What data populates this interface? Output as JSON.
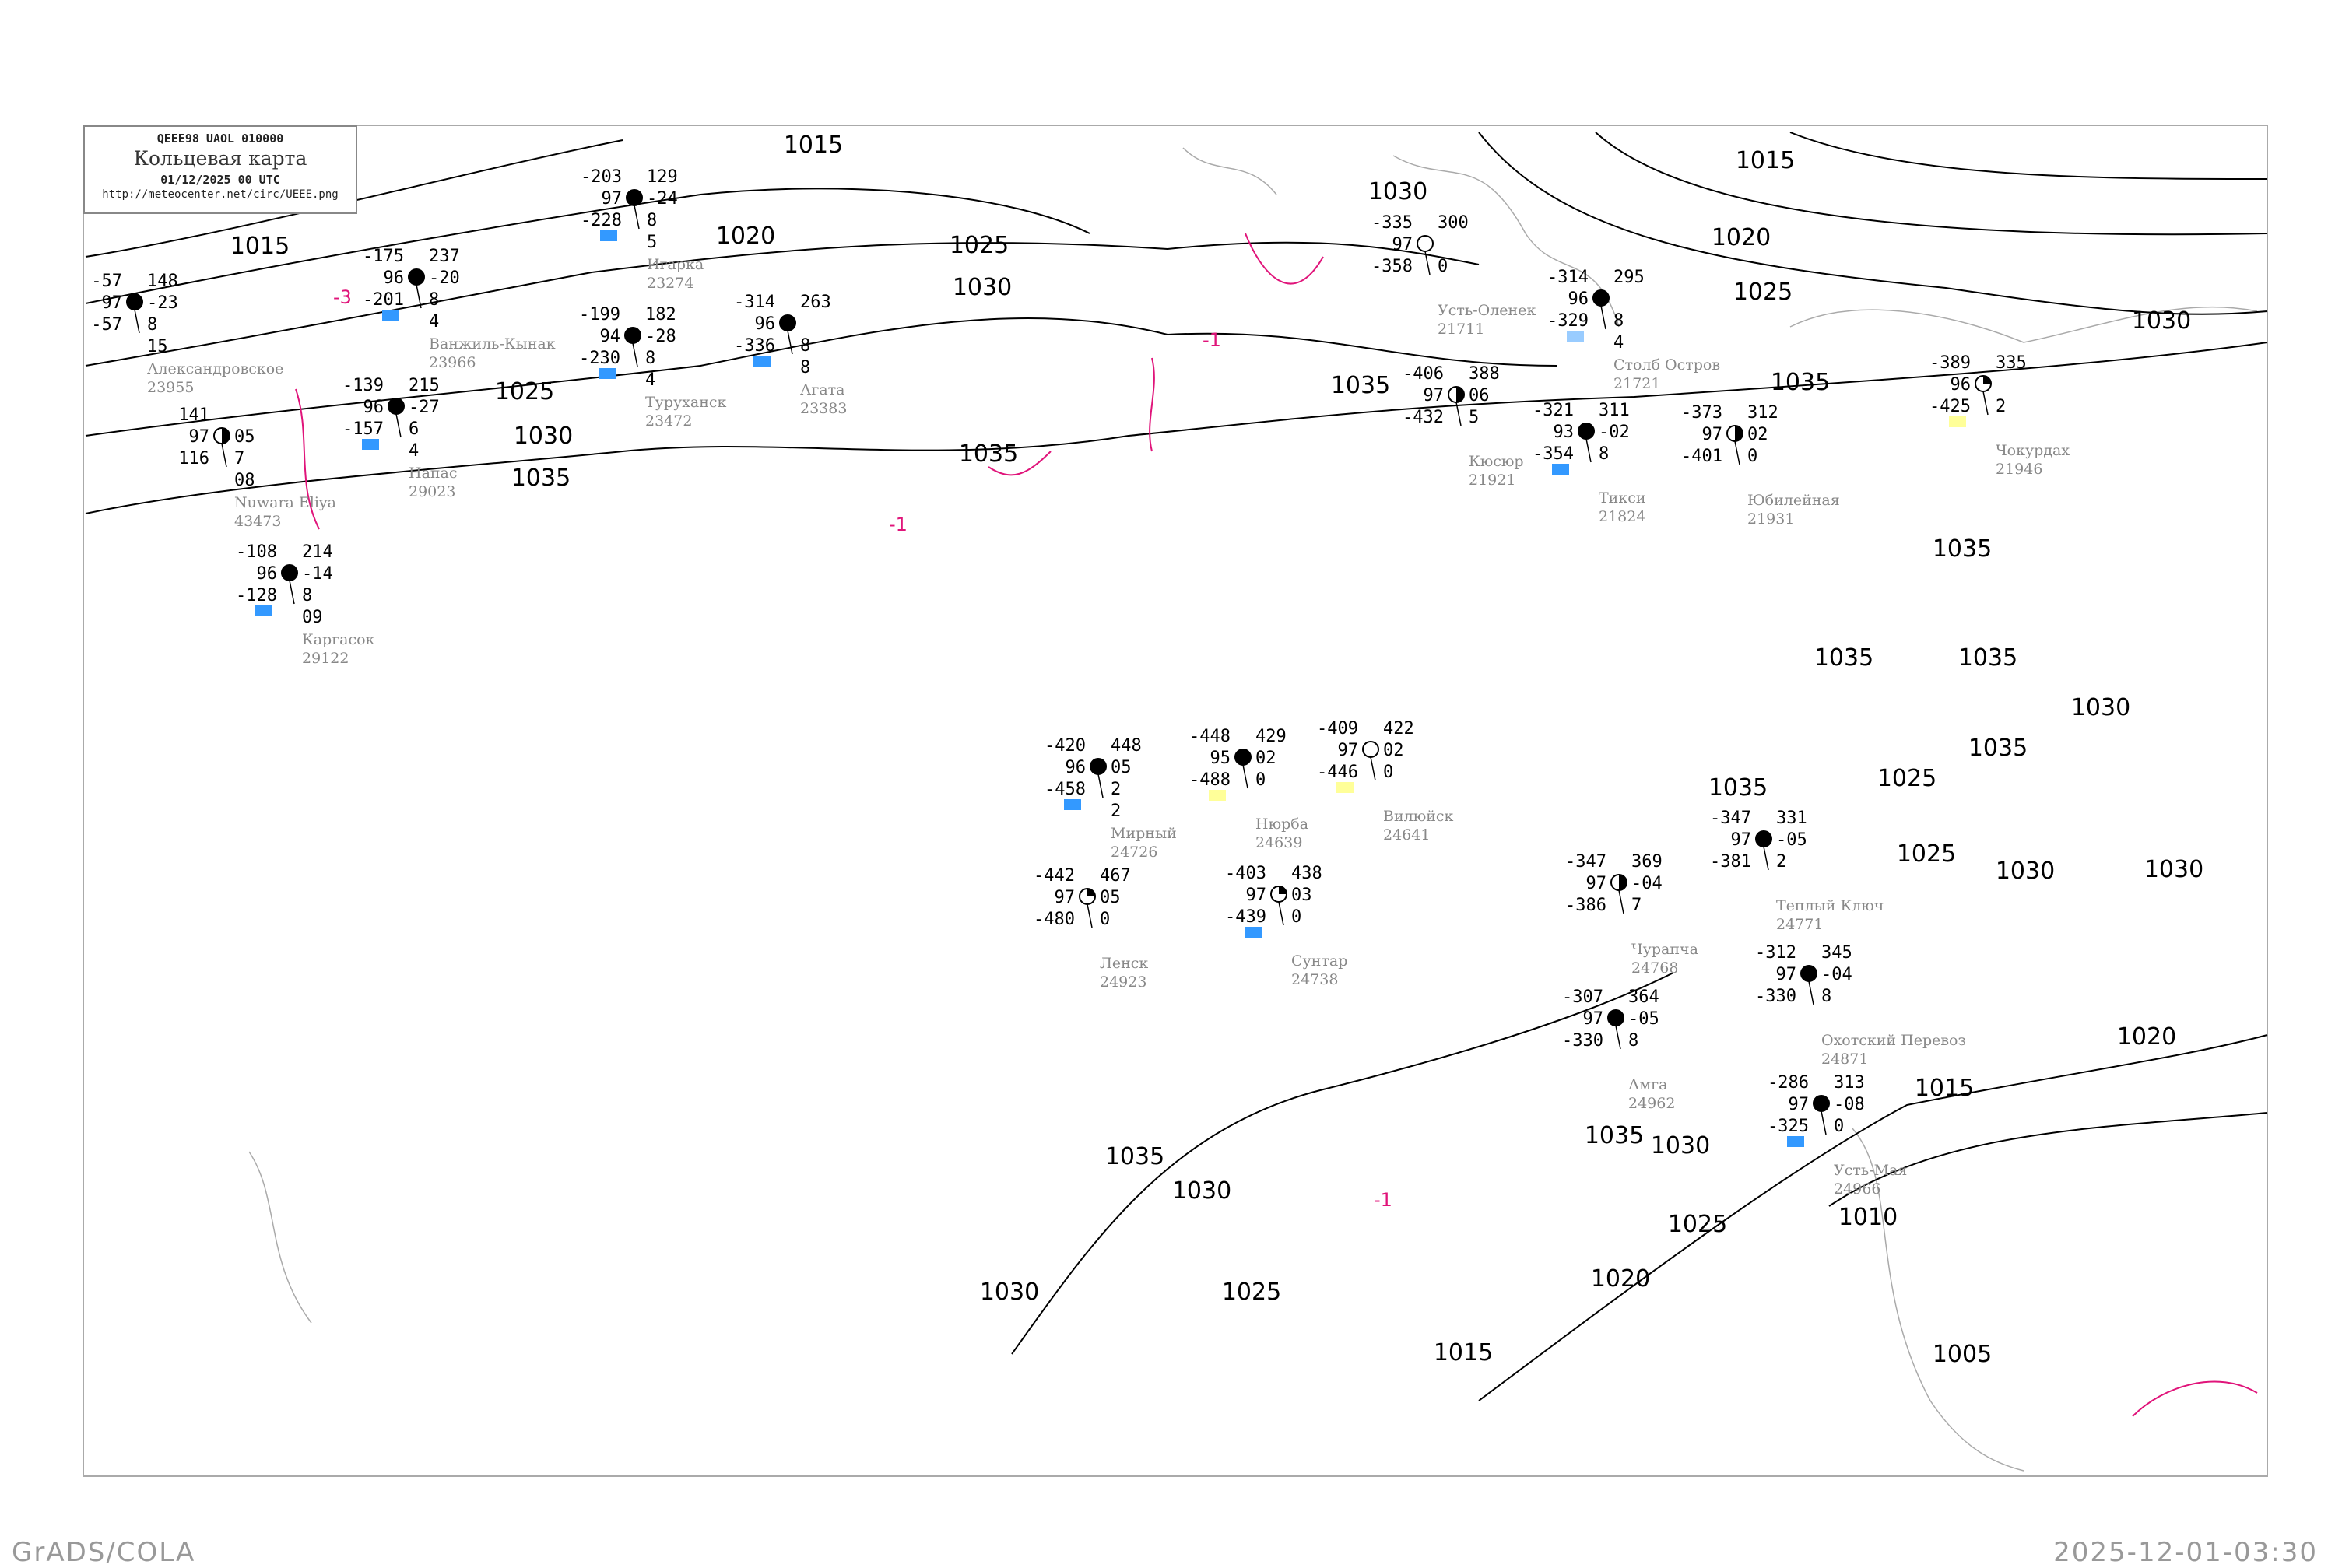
{
  "header": {
    "code_line": "QEEE98   UAOL   010000",
    "title": "Кольцевая карта",
    "datetime": "01/12/2025 00 UTC",
    "url": "http://meteocenter.net/circ/UEEE.png"
  },
  "footer": {
    "left": "GrADS/COLA",
    "right": "2025-12-01-03:30"
  },
  "colors": {
    "isobar": "#000000",
    "isotherm": "#e0147a",
    "coastline": "#aaaaaa",
    "station_name": "#888888",
    "precip_blue": "#3399ff",
    "precip_yellow": "#ffff99"
  },
  "isobar_labels": [
    "1015",
    "1015",
    "1020",
    "1025",
    "1030",
    "1035",
    "1025",
    "1030",
    "1035",
    "1030",
    "1035",
    "1015",
    "1020",
    "1025",
    "1030",
    "1035",
    "1035",
    "1035",
    "1035",
    "1030",
    "1035",
    "1035",
    "1025",
    "1030",
    "1030",
    "1025",
    "1020",
    "1015",
    "1010",
    "1035",
    "1030",
    "1025",
    "1020",
    "1035",
    "1030",
    "1025",
    "1030",
    "1015",
    "1005"
  ],
  "isotherm_labels": [
    "-3",
    "-1",
    "-1",
    "-1"
  ],
  "stations": [
    {
      "name": "Александровское",
      "id": "23955",
      "tl": "-57",
      "ml": "97",
      "bl": "-57",
      "tr": "148",
      "mr": "-23",
      "r3": "8",
      "r4": "15",
      "sky": "full",
      "mark": ""
    },
    {
      "name": "Nuwara Eliya",
      "id": "43473",
      "tl": "141",
      "ml": "97",
      "bl": "116",
      "tr": "",
      "mr": "05",
      "r3": "7",
      "r4": "08",
      "sky": "half",
      "mark": ""
    },
    {
      "name": "Каргасок",
      "id": "29122",
      "tl": "-108",
      "ml": "96",
      "bl": "-128",
      "tr": "214",
      "mr": "-14",
      "r3": "8",
      "r4": "09",
      "sky": "full",
      "mark": "blue"
    },
    {
      "name": "Напас",
      "id": "29023",
      "tl": "-139",
      "ml": "96",
      "bl": "-157",
      "tr": "215",
      "mr": "-27",
      "r3": "6",
      "r4": "4",
      "sky": "full",
      "mark": "blue"
    },
    {
      "name": "Ванжиль-Кынак",
      "id": "23966",
      "tl": "-175",
      "ml": "96",
      "bl": "-201",
      "tr": "237",
      "mr": "-20",
      "r3": "8",
      "r4": "4",
      "sky": "full",
      "mark": "blue"
    },
    {
      "name": "Игарка",
      "id": "23274",
      "tl": "-203",
      "ml": "97",
      "bl": "-228",
      "tr": "129",
      "mr": "-24",
      "r3": "8",
      "r4": "5",
      "sky": "full",
      "mark": "blue"
    },
    {
      "name": "Туруханск",
      "id": "23472",
      "tl": "-199",
      "ml": "94",
      "bl": "-230",
      "tr": "182",
      "mr": "-28",
      "r3": "8",
      "r4": "4",
      "sky": "full",
      "mark": "blue"
    },
    {
      "name": "Агата",
      "id": "23383",
      "tl": "-314",
      "ml": "96",
      "bl": "-336",
      "tr": "263",
      "mr": "",
      "r3": "8",
      "r4": "8",
      "sky": "full",
      "mark": "blue"
    },
    {
      "name": "Усть-Оленек",
      "id": "21711",
      "tl": "-335",
      "ml": "97",
      "bl": "-358",
      "tr": "300",
      "mr": "",
      "r3": "0",
      "r4": "",
      "sky": "empty",
      "mark": ""
    },
    {
      "name": "Столб Остров",
      "id": "21721",
      "tl": "-314",
      "ml": "96",
      "bl": "-329",
      "tr": "295",
      "mr": "",
      "r3": "8",
      "r4": "4",
      "sky": "full",
      "mark": "lightblue"
    },
    {
      "name": "Тикси",
      "id": "21824",
      "tl": "-321",
      "ml": "93",
      "bl": "-354",
      "tr": "311",
      "mr": "-02",
      "r3": "8",
      "r4": "",
      "sky": "full",
      "mark": "blue"
    },
    {
      "name": "Кюсюр",
      "id": "21921",
      "tl": "-406",
      "ml": "97",
      "bl": "-432",
      "tr": "388",
      "mr": "06",
      "r3": "5",
      "r4": "",
      "sky": "half",
      "mark": ""
    },
    {
      "name": "Юбилейная",
      "id": "21931",
      "tl": "-373",
      "ml": "97",
      "bl": "-401",
      "tr": "312",
      "mr": "02",
      "r3": "0",
      "r4": "",
      "sky": "half",
      "mark": ""
    },
    {
      "name": "Чокурдах",
      "id": "21946",
      "tl": "-389",
      "ml": "96",
      "bl": "-425",
      "tr": "335",
      "mr": "",
      "r3": "2",
      "r4": "",
      "sky": "quarter",
      "mark": "yellow"
    },
    {
      "name": "Мирный",
      "id": "24726",
      "tl": "-420",
      "ml": "96",
      "bl": "-458",
      "tr": "448",
      "mr": "05",
      "r3": "2",
      "r4": "2",
      "sky": "full",
      "mark": "blue"
    },
    {
      "name": "Нюрба",
      "id": "24639",
      "tl": "-448",
      "ml": "95",
      "bl": "-488",
      "tr": "429",
      "mr": "02",
      "r3": "0",
      "r4": "",
      "sky": "full",
      "mark": "yellow"
    },
    {
      "name": "Вилюйск",
      "id": "24641",
      "tl": "-409",
      "ml": "97",
      "bl": "-446",
      "tr": "422",
      "mr": "02",
      "r3": "0",
      "r4": "",
      "sky": "empty",
      "mark": "yellow"
    },
    {
      "name": "Сунтар",
      "id": "24738",
      "tl": "-403",
      "ml": "97",
      "bl": "-439",
      "tr": "438",
      "mr": "03",
      "r3": "0",
      "r4": "",
      "sky": "quarter",
      "mark": "blue"
    },
    {
      "name": "Ленск",
      "id": "24923",
      "tl": "-442",
      "ml": "97",
      "bl": "-480",
      "tr": "467",
      "mr": "05",
      "r3": "0",
      "r4": "",
      "sky": "quarter",
      "mark": ""
    },
    {
      "name": "Теплый Ключ",
      "id": "24771",
      "tl": "-347",
      "ml": "97",
      "bl": "-381",
      "tr": "331",
      "mr": "-05",
      "r3": "2",
      "r4": "",
      "sky": "full",
      "mark": ""
    },
    {
      "name": "Чурапча",
      "id": "24768",
      "tl": "-347",
      "ml": "97",
      "bl": "-386",
      "tr": "369",
      "mr": "-04",
      "r3": "7",
      "r4": "",
      "sky": "half",
      "mark": ""
    },
    {
      "name": "Охотский Перевоз",
      "id": "24871",
      "tl": "-312",
      "ml": "97",
      "bl": "-330",
      "tr": "345",
      "mr": "-04",
      "r3": "8",
      "r4": "",
      "sky": "full",
      "mark": ""
    },
    {
      "name": "Амга",
      "id": "24962",
      "tl": "-307",
      "ml": "97",
      "bl": "-330",
      "tr": "364",
      "mr": "-05",
      "r3": "8",
      "r4": "",
      "sky": "full",
      "mark": ""
    },
    {
      "name": "Усть-Мая",
      "id": "24966",
      "tl": "-286",
      "ml": "97",
      "bl": "-325",
      "tr": "313",
      "mr": "-08",
      "r3": "0",
      "r4": "",
      "sky": "full",
      "mark": "blue"
    }
  ]
}
